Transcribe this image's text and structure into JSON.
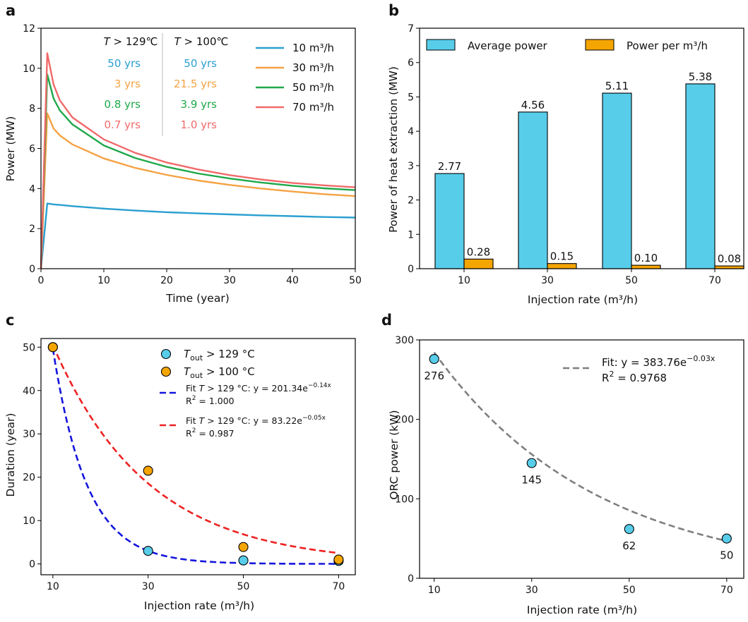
{
  "panels": {
    "a": "a",
    "b": "b",
    "c": "c",
    "d": "d"
  },
  "chart_data": [
    {
      "id": "a",
      "type": "line",
      "xlabel": "Time (year)",
      "ylabel": "Power (MW)",
      "xlim": [
        0,
        50
      ],
      "ylim": [
        0,
        12
      ],
      "xticks": [
        0,
        10,
        20,
        30,
        40,
        50
      ],
      "yticks": [
        0,
        2,
        4,
        6,
        8,
        10,
        12
      ],
      "series": [
        {
          "name": "10 m³/h",
          "color": "#2a9fd0",
          "x": [
            0,
            1,
            2,
            3,
            5,
            10,
            15,
            20,
            25,
            30,
            35,
            40,
            45,
            50
          ],
          "y": [
            0,
            3.25,
            3.21,
            3.18,
            3.12,
            3.0,
            2.9,
            2.82,
            2.76,
            2.71,
            2.66,
            2.62,
            2.58,
            2.55
          ]
        },
        {
          "name": "30 m³/h",
          "color": "#f5a243",
          "x": [
            0,
            1,
            2,
            3,
            5,
            10,
            15,
            20,
            25,
            30,
            35,
            40,
            45,
            50
          ],
          "y": [
            0,
            7.75,
            7.0,
            6.65,
            6.2,
            5.5,
            5.03,
            4.68,
            4.4,
            4.18,
            4.0,
            3.85,
            3.72,
            3.62
          ]
        },
        {
          "name": "50 m³/h",
          "color": "#1fa84a",
          "x": [
            0,
            1,
            2,
            3,
            5,
            10,
            15,
            20,
            25,
            30,
            35,
            40,
            45,
            50
          ],
          "y": [
            0,
            9.7,
            8.5,
            7.9,
            7.2,
            6.15,
            5.52,
            5.08,
            4.75,
            4.5,
            4.3,
            4.14,
            4.01,
            3.92
          ]
        },
        {
          "name": "70 m³/h",
          "color": "#f06a6a",
          "x": [
            0,
            1,
            2,
            3,
            5,
            10,
            15,
            20,
            25,
            30,
            35,
            40,
            45,
            50
          ],
          "y": [
            0,
            10.75,
            9.2,
            8.4,
            7.55,
            6.45,
            5.78,
            5.3,
            4.95,
            4.67,
            4.45,
            4.28,
            4.16,
            4.06
          ]
        }
      ],
      "table": {
        "header_left": "T > 129℃",
        "header_right": "T > 100℃",
        "rows": [
          {
            "left": "50 yrs",
            "right": "50 yrs",
            "color": "#2a9fd0"
          },
          {
            "left": "3 yrs",
            "right": "21.5 yrs",
            "color": "#f5a243"
          },
          {
            "left": "0.8 yrs",
            "right": "3.9 yrs",
            "color": "#1fa84a"
          },
          {
            "left": "0.7 yrs",
            "right": "1.0 yrs",
            "color": "#f06a6a"
          }
        ]
      }
    },
    {
      "id": "b",
      "type": "bar",
      "xlabel": "Injection rate (m³/h)",
      "ylabel": "Power of heat extraction (MW)",
      "ylim": [
        0,
        7
      ],
      "yticks": [
        0,
        1,
        2,
        3,
        4,
        5,
        6,
        7
      ],
      "categories": [
        "10",
        "30",
        "50",
        "70"
      ],
      "series": [
        {
          "name": "Average power",
          "color": "#57cdea",
          "values": [
            2.77,
            4.56,
            5.11,
            5.38
          ],
          "labels": [
            "2.77",
            "4.56",
            "5.11",
            "5.38"
          ]
        },
        {
          "name": "Power per m³/h",
          "color": "#f5a500",
          "values": [
            0.28,
            0.15,
            0.1,
            0.08
          ],
          "labels": [
            "0.28",
            "0.15",
            "0.10",
            "0.08"
          ]
        }
      ]
    },
    {
      "id": "c",
      "type": "scatter",
      "xlabel": "Injection rate (m³/h)",
      "ylabel": "Duration (year)",
      "xlim": [
        7.5,
        73.5
      ],
      "ylim": [
        -2.5,
        52
      ],
      "xticks": [
        10,
        30,
        50,
        70
      ],
      "yticks": [
        0,
        10,
        20,
        30,
        40,
        50
      ],
      "series": [
        {
          "name": "T_out > 129 °C",
          "color": "#57cdea",
          "x": [
            10,
            30,
            50,
            70
          ],
          "y": [
            50,
            3,
            0.8,
            0.7
          ]
        },
        {
          "name": "T_out > 100 °C",
          "color": "#f5a500",
          "x": [
            10,
            30,
            50,
            70
          ],
          "y": [
            50,
            21.5,
            3.9,
            1.0
          ]
        }
      ],
      "fits": [
        {
          "name": "Fit T > 129 °C: y = 201.34e^(−0.14x)",
          "a": 201.34,
          "b": -0.14,
          "color": "#1515dd"
        },
        {
          "name": "Fit T > 129 °C: y = 83.22e^(−0.05x)",
          "a": 83.22,
          "b": -0.05,
          "color": "#ee2222"
        }
      ],
      "legend": {
        "t129_sym": "T",
        "t129_sub": "out",
        "t129_rest": " > 129 °C",
        "t100_sym": "T",
        "t100_sub": "out",
        "t100_rest": " > 100 °C",
        "fit1_pre": "Fit ",
        "fit1_sym": "T",
        "fit1_mid": " > 129 °C: y = 201.34e",
        "fit1_exp": "−0.14x",
        "fit1_r2": "R",
        "fit1_r2sup": "2",
        "fit1_r2val": " = 1.000",
        "fit2_pre": "Fit ",
        "fit2_sym": "T",
        "fit2_mid": " > 129 °C: y = 83.22e",
        "fit2_exp": "−0.05x",
        "fit2_r2": "R",
        "fit2_r2sup": "2",
        "fit2_r2val": " = 0.987"
      }
    },
    {
      "id": "d",
      "type": "scatter",
      "xlabel": "Injection rate (m³/h)",
      "ylabel": "ORC power (kW)",
      "xlim": [
        7,
        73.5
      ],
      "ylim": [
        0,
        300
      ],
      "xticks": [
        10,
        30,
        50,
        70
      ],
      "yticks": [
        0,
        100,
        200,
        300
      ],
      "points": {
        "x": [
          10,
          30,
          50,
          70
        ],
        "y": [
          276,
          145,
          62,
          50
        ],
        "labels": [
          "276",
          "145",
          "62",
          "50"
        ],
        "color": "#57cdea"
      },
      "fit": {
        "a": 383.76,
        "b": -0.03,
        "color": "#7f7f7f"
      },
      "legend": {
        "fit_text": "Fit: y = 383.76e",
        "fit_exp": "−0.03x",
        "r2": "R",
        "r2sup": "2",
        "r2val": " = 0.9768"
      }
    }
  ]
}
